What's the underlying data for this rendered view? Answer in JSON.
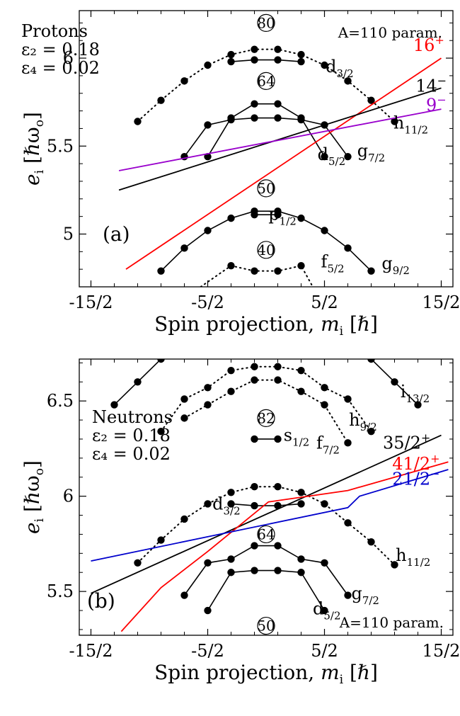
{
  "chart_data": [
    {
      "id": "a",
      "type": "line",
      "panel_label": "(a)",
      "xlabel": {
        "main": "Spin projection, ",
        "var": "m",
        "sub": "i",
        "unit": " [ℏ]"
      },
      "ylabel": {
        "var": "e",
        "sub": "i",
        "unit": " [ℏω",
        "unit_sub": "o",
        "close": "]"
      },
      "xlim": [
        -8,
        8
      ],
      "ylim": [
        4.7,
        6.27
      ],
      "xticks": [
        {
          "value": -7.5,
          "label": "-15/2"
        },
        {
          "value": -2.5,
          "label": "-5/2"
        },
        {
          "value": 2.5,
          "label": "5/2"
        },
        {
          "value": 7.5,
          "label": "15/2"
        }
      ],
      "yticks": [
        {
          "value": 5.0,
          "label": "5"
        },
        {
          "value": 5.5,
          "label": "5.5"
        },
        {
          "value": 6.0,
          "label": "6"
        }
      ],
      "nucleon_text": {
        "title": "Protons",
        "eps2": "ε₂ = 0.18",
        "eps4": "ε₄ = 0.02",
        "param": "A=110 param."
      },
      "orbitals": [
        {
          "name": "h11/2",
          "style": "dotted",
          "points": [
            [
              -5.5,
              5.64
            ],
            [
              -4.5,
              5.76
            ],
            [
              -3.5,
              5.87
            ],
            [
              -2.5,
              5.96
            ],
            [
              -1.5,
              6.02
            ],
            [
              -0.5,
              6.05
            ],
            [
              0.5,
              6.05
            ],
            [
              1.5,
              6.02
            ],
            [
              2.5,
              5.96
            ],
            [
              3.5,
              5.87
            ],
            [
              4.5,
              5.76
            ],
            [
              5.5,
              5.64
            ]
          ]
        },
        {
          "name": "d3/2",
          "style": "solid",
          "points": [
            [
              -1.5,
              5.98
            ],
            [
              -0.5,
              5.99
            ],
            [
              0.5,
              5.99
            ],
            [
              1.5,
              5.98
            ]
          ]
        },
        {
          "name": "g7/2",
          "style": "solid",
          "points": [
            [
              -3.5,
              5.44
            ],
            [
              -2.5,
              5.62
            ],
            [
              -1.5,
              5.65
            ],
            [
              -0.5,
              5.66
            ],
            [
              0.5,
              5.66
            ],
            [
              1.5,
              5.65
            ],
            [
              2.5,
              5.62
            ],
            [
              3.5,
              5.44
            ]
          ]
        },
        {
          "name": "d5/2",
          "style": "solid",
          "points": [
            [
              -2.5,
              5.44
            ],
            [
              -1.5,
              5.66
            ],
            [
              -0.5,
              5.74
            ],
            [
              0.5,
              5.74
            ],
            [
              1.5,
              5.66
            ],
            [
              2.5,
              5.44
            ]
          ]
        },
        {
          "name": "g9/2",
          "style": "solid",
          "points": [
            [
              -4.5,
              4.79
            ],
            [
              -3.5,
              4.92
            ],
            [
              -2.5,
              5.02
            ],
            [
              -1.5,
              5.09
            ],
            [
              -0.5,
              5.13
            ],
            [
              0.5,
              5.13
            ],
            [
              1.5,
              5.09
            ],
            [
              2.5,
              5.02
            ],
            [
              3.5,
              4.92
            ],
            [
              4.5,
              4.79
            ]
          ]
        },
        {
          "name": "p1/2",
          "style": "solid",
          "points": [
            [
              -0.5,
              5.11
            ],
            [
              0.5,
              5.11
            ]
          ]
        },
        {
          "name": "f5/2",
          "style": "dotted",
          "points": [
            [
              -2.8,
              4.7
            ],
            [
              -1.5,
              4.82
            ],
            [
              -0.5,
              4.79
            ],
            [
              0.5,
              4.79
            ],
            [
              1.5,
              4.82
            ],
            [
              2.0,
              4.7
            ]
          ]
        }
      ],
      "orbital_labels": [
        {
          "l": "h",
          "sub": "11/2",
          "x": 5.45,
          "y": 5.6
        },
        {
          "l": "d",
          "sub": "3/2",
          "x": 2.55,
          "y": 5.92
        },
        {
          "l": "g",
          "sub": "7/2",
          "x": 3.9,
          "y": 5.44
        },
        {
          "l": "d",
          "sub": "5/2",
          "x": 2.2,
          "y": 5.42
        },
        {
          "l": "p",
          "sub": "1/2",
          "x": 0.1,
          "y": 5.08
        },
        {
          "l": "f",
          "sub": "5/2",
          "x": 2.35,
          "y": 4.81
        },
        {
          "l": "g",
          "sub": "9/2",
          "x": 4.95,
          "y": 4.8
        }
      ],
      "magic_numbers": [
        {
          "value": "80",
          "x": 0.0,
          "y": 6.2
        },
        {
          "value": "64",
          "x": 0.0,
          "y": 5.87
        },
        {
          "value": "50",
          "x": 0.0,
          "y": 5.26
        },
        {
          "value": "40",
          "x": 0.0,
          "y": 4.91
        }
      ],
      "series": [
        {
          "name": "16⁺",
          "color": "#ff0000",
          "points": [
            [
              -6.0,
              4.8
            ],
            [
              7.5,
              6.0
            ]
          ],
          "label": {
            "text": "16",
            "sup": "+",
            "x": 6.3,
            "y": 6.04
          }
        },
        {
          "name": "14⁻",
          "color": "#000000",
          "points": [
            [
              -6.3,
              5.25
            ],
            [
              7.5,
              5.83
            ]
          ],
          "label": {
            "text": "14",
            "sup": "−",
            "x": 6.4,
            "y": 5.81
          }
        },
        {
          "name": "9⁻",
          "color": "#9900cc",
          "points": [
            [
              -6.3,
              5.36
            ],
            [
              7.5,
              5.71
            ]
          ],
          "label": {
            "text": "9",
            "sup": "−",
            "x": 6.85,
            "y": 5.7
          }
        }
      ]
    },
    {
      "id": "b",
      "type": "line",
      "panel_label": "(b)",
      "xlabel": {
        "main": "Spin projection, ",
        "var": "m",
        "sub": "i",
        "unit": " [ℏ]"
      },
      "ylabel": {
        "var": "e",
        "sub": "i",
        "unit": " [ℏω",
        "unit_sub": "o",
        "close": "]"
      },
      "xlim": [
        -8,
        8
      ],
      "ylim": [
        5.27,
        6.72
      ],
      "xticks": [
        {
          "value": -7.5,
          "label": "-15/2"
        },
        {
          "value": -2.5,
          "label": "-5/2"
        },
        {
          "value": 2.5,
          "label": "5/2"
        },
        {
          "value": 7.5,
          "label": "15/2"
        }
      ],
      "yticks": [
        {
          "value": 5.5,
          "label": "5.5"
        },
        {
          "value": 6.0,
          "label": "6"
        },
        {
          "value": 6.5,
          "label": "6.5"
        }
      ],
      "nucleon_text": {
        "title": "Neutrons",
        "eps2": "ε₂ = 0.18",
        "eps4": "ε₄ = 0.02",
        "param": "A=110 param."
      },
      "orbitals": [
        {
          "name": "i13/2 left",
          "style": "solid",
          "points": [
            [
              -6.5,
              6.48
            ],
            [
              -5.5,
              6.6
            ],
            [
              -4.5,
              6.72
            ]
          ]
        },
        {
          "name": "i13/2 right",
          "style": "solid",
          "points": [
            [
              4.5,
              6.72
            ],
            [
              5.5,
              6.6
            ],
            [
              6.5,
              6.48
            ]
          ]
        },
        {
          "name": "h9/2",
          "style": "dotted",
          "points": [
            [
              -4.5,
              6.34
            ],
            [
              -3.5,
              6.51
            ],
            [
              -2.5,
              6.57
            ],
            [
              -1.5,
              6.66
            ],
            [
              -0.5,
              6.68
            ],
            [
              0.5,
              6.68
            ],
            [
              1.5,
              6.66
            ],
            [
              2.5,
              6.57
            ],
            [
              3.5,
              6.51
            ],
            [
              4.5,
              6.34
            ]
          ]
        },
        {
          "name": "f7/2",
          "style": "dotted",
          "points": [
            [
              -3.5,
              6.41
            ],
            [
              -2.5,
              6.48
            ],
            [
              -1.5,
              6.55
            ],
            [
              -0.5,
              6.61
            ],
            [
              0.5,
              6.61
            ],
            [
              1.5,
              6.55
            ],
            [
              2.5,
              6.48
            ],
            [
              3.5,
              6.28
            ]
          ]
        },
        {
          "name": "s1/2",
          "style": "solid",
          "points": [
            [
              -0.5,
              6.3
            ],
            [
              0.5,
              6.3
            ]
          ]
        },
        {
          "name": "h11/2",
          "style": "dotted",
          "points": [
            [
              -5.5,
              5.65
            ],
            [
              -4.5,
              5.77
            ],
            [
              -3.5,
              5.88
            ],
            [
              -2.5,
              5.96
            ],
            [
              -1.5,
              6.02
            ],
            [
              -0.5,
              6.05
            ],
            [
              0.5,
              6.05
            ],
            [
              1.5,
              6.02
            ],
            [
              2.5,
              5.96
            ],
            [
              3.5,
              5.86
            ],
            [
              4.5,
              5.76
            ],
            [
              5.5,
              5.64
            ]
          ]
        },
        {
          "name": "d3/2",
          "style": "solid",
          "points": [
            [
              -1.5,
              5.96
            ],
            [
              -0.5,
              5.95
            ],
            [
              0.5,
              5.95
            ],
            [
              1.5,
              5.96
            ]
          ]
        },
        {
          "name": "d5/2",
          "style": "solid",
          "points": [
            [
              -3.5,
              5.48
            ],
            [
              -2.5,
              5.65
            ],
            [
              -1.5,
              5.67
            ],
            [
              -0.5,
              5.74
            ],
            [
              0.5,
              5.74
            ],
            [
              1.5,
              5.67
            ],
            [
              2.5,
              5.65
            ],
            [
              3.5,
              5.48
            ]
          ]
        },
        {
          "name": "g7/2",
          "style": "solid",
          "points": [
            [
              -2.5,
              5.4
            ],
            [
              -1.5,
              5.6
            ],
            [
              -0.5,
              5.61
            ],
            [
              0.5,
              5.61
            ],
            [
              1.5,
              5.6
            ],
            [
              2.5,
              5.4
            ]
          ]
        }
      ],
      "orbital_labels": [
        {
          "l": "i",
          "sub": "13/2",
          "x": 5.75,
          "y": 6.52
        },
        {
          "l": "h",
          "sub": "9/2",
          "x": 3.55,
          "y": 6.37
        },
        {
          "l": "f",
          "sub": "7/2",
          "x": 2.15,
          "y": 6.25
        },
        {
          "l": "s",
          "sub": "1/2",
          "x": 0.75,
          "y": 6.29
        },
        {
          "l": "d",
          "sub": "3/2",
          "x": -2.3,
          "y": 5.93
        },
        {
          "l": "h",
          "sub": "11/2",
          "x": 5.55,
          "y": 5.66
        },
        {
          "l": "g",
          "sub": "7/2",
          "x": 3.65,
          "y": 5.46
        },
        {
          "l": "d",
          "sub": "5/2",
          "x": 2.0,
          "y": 5.38
        }
      ],
      "magic_numbers": [
        {
          "value": "82",
          "x": 0.0,
          "y": 6.41
        },
        {
          "value": "64",
          "x": 0.0,
          "y": 5.8
        },
        {
          "value": "50",
          "x": 0.0,
          "y": 5.32
        }
      ],
      "series": [
        {
          "name": "35/2⁺",
          "color": "#000000",
          "points": [
            [
              -7.5,
              5.49
            ],
            [
              7.5,
              6.32
            ]
          ],
          "label": {
            "text": "35/2",
            "sup": "+",
            "x": 5.0,
            "y": 6.25
          }
        },
        {
          "name": "41/2⁺",
          "color": "#ff0000",
          "points": [
            [
              -6.2,
              5.29
            ],
            [
              -4.5,
              5.52
            ],
            [
              -2.5,
              5.71
            ],
            [
              0.1,
              5.97
            ],
            [
              3.5,
              6.03
            ],
            [
              7.8,
              6.18
            ]
          ],
          "label": {
            "text": "41/2",
            "sup": "+",
            "x": 5.4,
            "y": 6.14
          }
        },
        {
          "name": "21/2⁻",
          "color": "#0000cc",
          "points": [
            [
              -7.5,
              5.66
            ],
            [
              3.5,
              5.94
            ],
            [
              4.0,
              6.0
            ],
            [
              7.8,
              6.14
            ]
          ],
          "label": {
            "text": "21/2",
            "sup": "−",
            "x": 5.4,
            "y": 6.06
          }
        }
      ]
    }
  ]
}
